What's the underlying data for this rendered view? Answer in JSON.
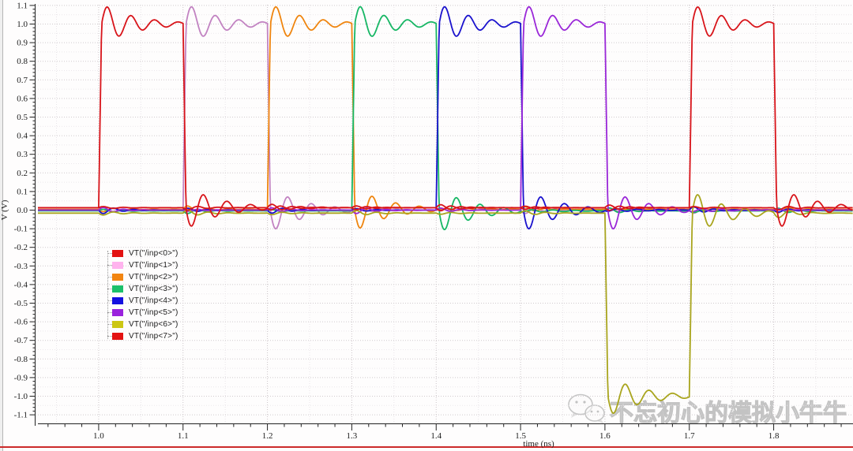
{
  "window": {
    "left_border_color": "#b5b5b5",
    "bottom_border_color": "#cc2a2a"
  },
  "axes": {
    "x": {
      "label": "time (ns)",
      "tick_labels": [
        "1.0",
        "1.1",
        "1.2",
        "1.3",
        "1.4",
        "1.5",
        "1.6",
        "1.7",
        "1.8"
      ],
      "tick_values": [
        1.0,
        1.1,
        1.2,
        1.3,
        1.4,
        1.5,
        1.6,
        1.7,
        1.8
      ],
      "minor_step": 0.02,
      "grid_step": 0.05
    },
    "y": {
      "label": "V (V)",
      "tick_labels": [
        "1.1",
        "1.0",
        "0.9",
        "0.8",
        "0.7",
        "0.6",
        "0.5",
        "0.4",
        "0.3",
        "0.2",
        "0.1",
        "0.0",
        "-0.1",
        "-0.2",
        "-0.3",
        "-0.4",
        "-0.5",
        "-0.6",
        "-0.7",
        "-0.8",
        "-0.9",
        "-1.0",
        "-1.1"
      ],
      "tick_values": [
        1.1,
        1.0,
        0.9,
        0.8,
        0.7,
        0.6,
        0.5,
        0.4,
        0.3,
        0.2,
        0.1,
        0.0,
        -0.1,
        -0.2,
        -0.3,
        -0.4,
        -0.5,
        -0.6,
        -0.7,
        -0.8,
        -0.9,
        -1.0,
        -1.1
      ],
      "minor_step": 0.02,
      "grid_step": 0.05
    }
  },
  "chart_data": {
    "type": "line",
    "title": "",
    "xlabel": "time (ns)",
    "ylabel": "V (V)",
    "xlim": [
      0.928,
      1.894
    ],
    "ylim": [
      -1.1,
      1.1
    ],
    "grid": true,
    "legend_position": "middle-left",
    "edge_times": [
      1.0,
      1.1,
      1.2,
      1.3,
      1.4,
      1.5,
      1.6,
      1.7,
      1.8
    ],
    "ringing": {
      "own_amp": 0.11,
      "own_period": 0.028,
      "own_tau": 0.04,
      "xtalk_amp": 0.018,
      "xtalk_period": 0.024,
      "xtalk_tau": 0.022,
      "edge_ramp": 0.0035
    },
    "series": [
      {
        "name": "VT(\"/inp<0>\")",
        "color": "#d8141a",
        "swatch_color": "#e31212",
        "baseline": 0.013,
        "pulse_start": 1.0,
        "pulse_end": 1.1,
        "level": 1.0
      },
      {
        "name": "VT(\"/inp<1>\")",
        "color": "#c283c2",
        "swatch_color": "#ffb3ee",
        "baseline": 0.0,
        "pulse_start": 1.1,
        "pulse_end": 1.2,
        "level": 1.0
      },
      {
        "name": "VT(\"/inp<2>\")",
        "color": "#ef850f",
        "swatch_color": "#f28511",
        "baseline": 0.004,
        "pulse_start": 1.2,
        "pulse_end": 1.3,
        "level": 1.0
      },
      {
        "name": "VT(\"/inp<3>\")",
        "color": "#17b765",
        "swatch_color": "#1cc06a",
        "baseline": -0.004,
        "pulse_start": 1.3,
        "pulse_end": 1.4,
        "level": 1.0
      },
      {
        "name": "VT(\"/inp<4>\")",
        "color": "#1a12cd",
        "swatch_color": "#1410e0",
        "baseline": 0.0,
        "pulse_start": 1.4,
        "pulse_end": 1.5,
        "level": 1.0
      },
      {
        "name": "VT(\"/inp<5>\")",
        "color": "#9a27d8",
        "swatch_color": "#9a22dd",
        "baseline": 0.0,
        "pulse_start": 1.5,
        "pulse_end": 1.6,
        "level": 1.0
      },
      {
        "name": "VT(\"/inp<6>\")",
        "color": "#a9a51e",
        "swatch_color": "#ccc714",
        "baseline": -0.016,
        "pulse_start": 1.6,
        "pulse_end": 1.7,
        "level": -1.0
      },
      {
        "name": "VT(\"/inp<7>\")",
        "color": "#d8141a",
        "swatch_color": "#e31212",
        "baseline": 0.013,
        "pulse_start": 1.7,
        "pulse_end": 1.8,
        "level": 1.0
      }
    ]
  },
  "legend": {
    "items_from": "chart_data.series"
  },
  "watermark": {
    "text": "不忘初心的模拟小牛牛"
  }
}
